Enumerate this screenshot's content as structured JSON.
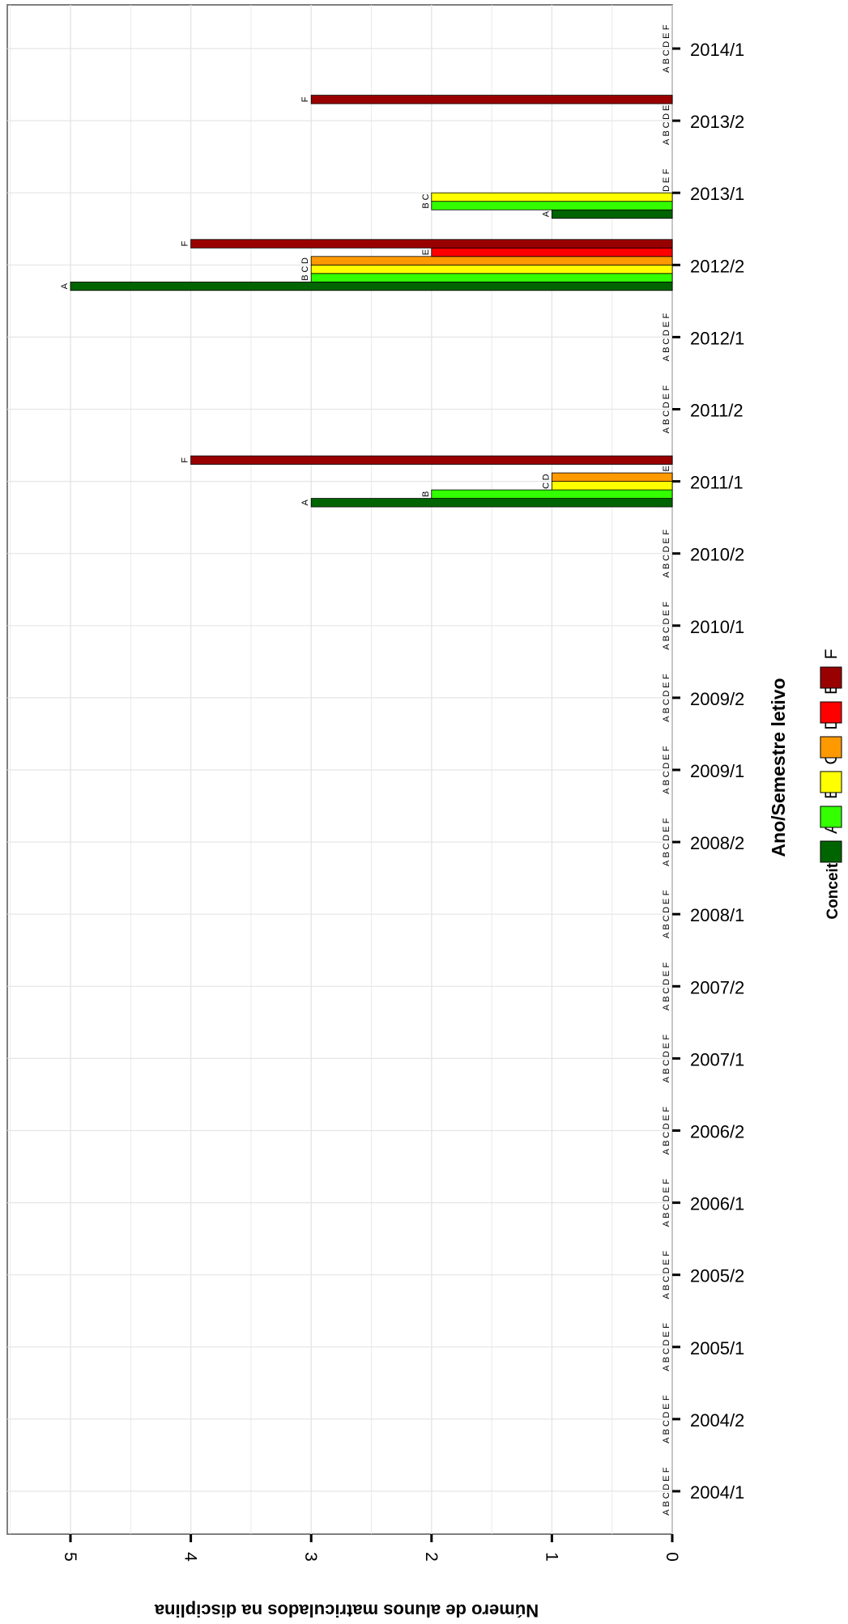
{
  "chart_data": {
    "type": "bar",
    "orientation": "rotated-horizontal",
    "xlabel": "Ano/Semestre letivo",
    "ylabel": "Número de alunos matriculados na disciplina",
    "legend_title": "Conceito",
    "legend_position": "bottom",
    "categories": [
      "2004/1",
      "2004/2",
      "2005/1",
      "2005/2",
      "2006/1",
      "2006/2",
      "2007/1",
      "2007/2",
      "2008/1",
      "2008/2",
      "2009/1",
      "2009/2",
      "2010/1",
      "2010/2",
      "2011/1",
      "2011/2",
      "2012/1",
      "2012/2",
      "2013/1",
      "2013/2",
      "2014/1"
    ],
    "ylim": [
      0,
      5.5
    ],
    "yticks": [
      0,
      1,
      2,
      3,
      4,
      5
    ],
    "grid": true,
    "series": [
      {
        "name": "A",
        "color": "#006400",
        "values": [
          0,
          0,
          0,
          0,
          0,
          0,
          0,
          0,
          0,
          0,
          0,
          0,
          0,
          0,
          3,
          0,
          0,
          5,
          1,
          0,
          0
        ]
      },
      {
        "name": "B",
        "color": "#33ff00",
        "values": [
          0,
          0,
          0,
          0,
          0,
          0,
          0,
          0,
          0,
          0,
          0,
          0,
          0,
          0,
          2,
          0,
          0,
          3,
          2,
          0,
          0
        ]
      },
      {
        "name": "C",
        "color": "#ffff00",
        "values": [
          0,
          0,
          0,
          0,
          0,
          0,
          0,
          0,
          0,
          0,
          0,
          0,
          0,
          0,
          1,
          0,
          0,
          3,
          2,
          0,
          0
        ]
      },
      {
        "name": "D",
        "color": "#ff9900",
        "values": [
          0,
          0,
          0,
          0,
          0,
          0,
          0,
          0,
          0,
          0,
          0,
          0,
          0,
          0,
          1,
          0,
          0,
          3,
          0,
          0,
          0
        ]
      },
      {
        "name": "E",
        "color": "#ff0000",
        "values": [
          0,
          0,
          0,
          0,
          0,
          0,
          0,
          0,
          0,
          0,
          0,
          0,
          0,
          0,
          0,
          0,
          0,
          2,
          0,
          0,
          0
        ]
      },
      {
        "name": "F",
        "color": "#990000",
        "values": [
          0,
          0,
          0,
          0,
          0,
          0,
          0,
          0,
          0,
          0,
          0,
          0,
          0,
          0,
          4,
          0,
          0,
          4,
          0,
          3,
          0
        ]
      }
    ]
  }
}
